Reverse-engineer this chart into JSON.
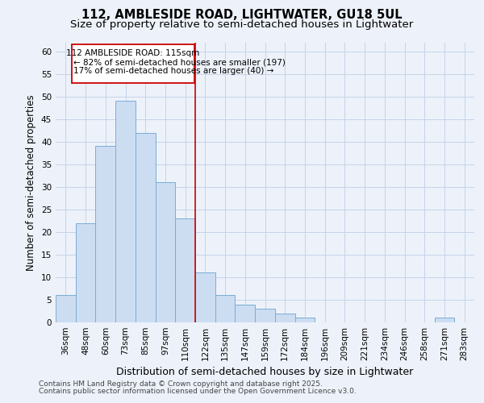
{
  "title": "112, AMBLESIDE ROAD, LIGHTWATER, GU18 5UL",
  "subtitle": "Size of property relative to semi-detached houses in Lightwater",
  "xlabel": "Distribution of semi-detached houses by size in Lightwater",
  "ylabel": "Number of semi-detached properties",
  "footnote1": "Contains HM Land Registry data © Crown copyright and database right 2025.",
  "footnote2": "Contains public sector information licensed under the Open Government Licence v3.0.",
  "categories": [
    "36sqm",
    "48sqm",
    "60sqm",
    "73sqm",
    "85sqm",
    "97sqm",
    "110sqm",
    "122sqm",
    "135sqm",
    "147sqm",
    "159sqm",
    "172sqm",
    "184sqm",
    "196sqm",
    "209sqm",
    "221sqm",
    "234sqm",
    "246sqm",
    "258sqm",
    "271sqm",
    "283sqm"
  ],
  "values": [
    6,
    22,
    39,
    49,
    42,
    31,
    23,
    11,
    6,
    4,
    3,
    2,
    1,
    0,
    0,
    0,
    0,
    0,
    0,
    1,
    0
  ],
  "bar_color": "#ccddf2",
  "bar_edge_color": "#7aadd4",
  "grid_color": "#c5d3e8",
  "background_color": "#edf2fa",
  "property_line_color": "#cc0000",
  "annotation_text_line1": "112 AMBLESIDE ROAD: 115sqm",
  "annotation_text_line2": "← 82% of semi-detached houses are smaller (197)",
  "annotation_text_line3": "17% of semi-detached houses are larger (40) →",
  "annotation_box_color": "#cc0000",
  "ylim": [
    0,
    62
  ],
  "yticks": [
    0,
    5,
    10,
    15,
    20,
    25,
    30,
    35,
    40,
    45,
    50,
    55,
    60
  ],
  "title_fontsize": 10.5,
  "subtitle_fontsize": 9.5,
  "ylabel_fontsize": 8.5,
  "xlabel_fontsize": 9,
  "tick_fontsize": 7.5,
  "annotation_fontsize": 7.5,
  "footnote_fontsize": 6.5
}
